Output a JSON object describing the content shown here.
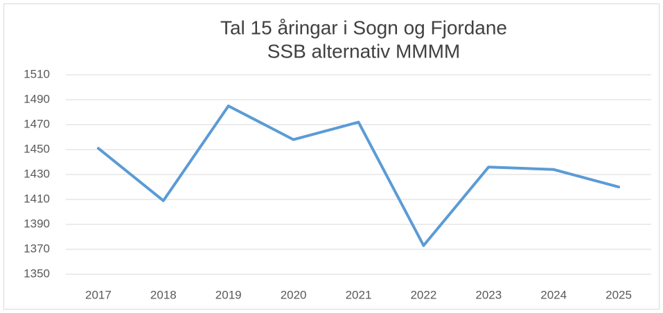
{
  "chart_data": {
    "type": "line",
    "title": "Tal 15 åringar i Sogn og Fjordane",
    "subtitle": "SSB alternativ MMMM",
    "categories": [
      "2017",
      "2018",
      "2019",
      "2020",
      "2021",
      "2022",
      "2023",
      "2024",
      "2025"
    ],
    "series": [
      {
        "name": "Tal 15 åringar",
        "color": "#5b9bd5",
        "values": [
          1451,
          1409,
          1485,
          1458,
          1472,
          1373,
          1436,
          1434,
          1420
        ]
      }
    ],
    "ylim": [
      1350,
      1510
    ],
    "yticks": [
      1350,
      1370,
      1390,
      1410,
      1430,
      1450,
      1470,
      1490,
      1510
    ],
    "grid": true
  }
}
